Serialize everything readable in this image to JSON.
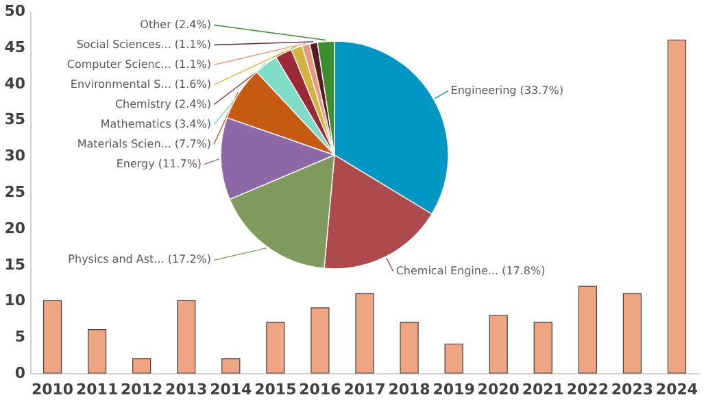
{
  "chart_data": [
    {
      "type": "bar",
      "categories": [
        "2010",
        "2011",
        "2012",
        "2013",
        "2014",
        "2015",
        "2016",
        "2017",
        "2018",
        "2019",
        "2020",
        "2021",
        "2022",
        "2023",
        "2024"
      ],
      "values": [
        10,
        6,
        2,
        10,
        2,
        7,
        9,
        11,
        7,
        4,
        8,
        7,
        12,
        11,
        46
      ],
      "color": "#f0a582",
      "ylim": [
        0,
        50
      ],
      "yticks": [
        0,
        5,
        10,
        15,
        20,
        25,
        30,
        35,
        40,
        45,
        50
      ],
      "grid": false
    },
    {
      "type": "pie",
      "categories": [
        "Engineering",
        "Chemical Engine...",
        "Physics and Ast...",
        "Energy",
        "Materials Scien...",
        "Mathematics",
        "Chemistry",
        "Environmental S...",
        "Computer Scienc...",
        "Social Sciences...",
        "Other"
      ],
      "values": [
        33.7,
        17.8,
        17.2,
        11.7,
        7.7,
        3.4,
        2.4,
        1.6,
        1.1,
        1.1,
        2.4
      ],
      "value_labels": [
        "(33.7%)",
        "(17.8%)",
        "(17.2%)",
        "(11.7%)",
        "(7.7%)",
        "(3.4%)",
        "(2.4%)",
        "(1.6%)",
        "(1.1%)",
        "(1.1%)",
        "(2.4%)"
      ],
      "colors": [
        "#0097c4",
        "#ad4a4d",
        "#7f9a5c",
        "#8c68a6",
        "#c55a11",
        "#7fdcc6",
        "#9b2a36",
        "#d4b43c",
        "#e39c80",
        "#5a1a24",
        "#3a8f2c"
      ]
    }
  ]
}
